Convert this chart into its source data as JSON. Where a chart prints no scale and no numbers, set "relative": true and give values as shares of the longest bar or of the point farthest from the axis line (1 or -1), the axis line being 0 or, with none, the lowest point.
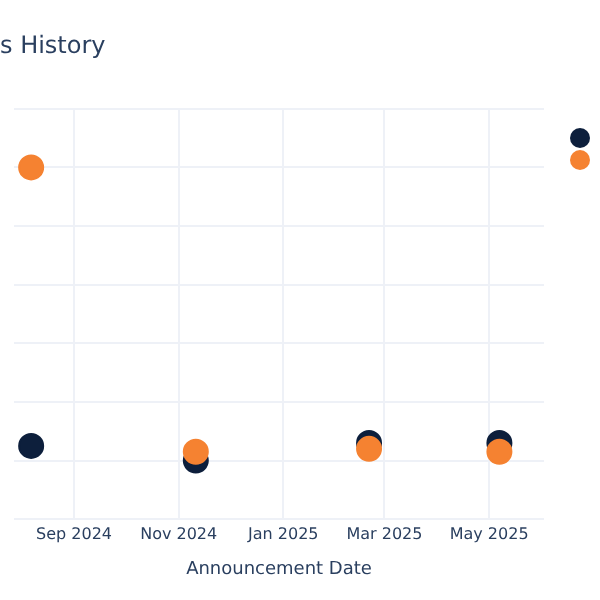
{
  "chart_data": {
    "type": "scatter",
    "title": "s History",
    "xlabel": "Announcement Date",
    "relative": true,
    "x": [
      "2024-08-07",
      "2024-11-11",
      "2025-02-20",
      "2025-05-07"
    ],
    "xlim": [
      "2024-07-28",
      "2025-06-02"
    ],
    "xticks": [
      {
        "value": "2024-09-01",
        "label": "Sep 2024"
      },
      {
        "value": "2024-11-01",
        "label": "Nov 2024"
      },
      {
        "value": "2025-01-01",
        "label": "Jan 2025"
      },
      {
        "value": "2025-03-01",
        "label": "Mar 2025"
      },
      {
        "value": "2025-05-01",
        "label": "May 2025"
      }
    ],
    "series": [
      {
        "color": "#0d1f3c",
        "values": [
          0.05,
          0,
          0.06,
          0.06
        ]
      },
      {
        "color": "#f58231",
        "values": [
          1,
          0.03,
          0.04,
          0.03
        ]
      }
    ],
    "marker": "circle",
    "grid": true,
    "tick_labels": "x"
  }
}
